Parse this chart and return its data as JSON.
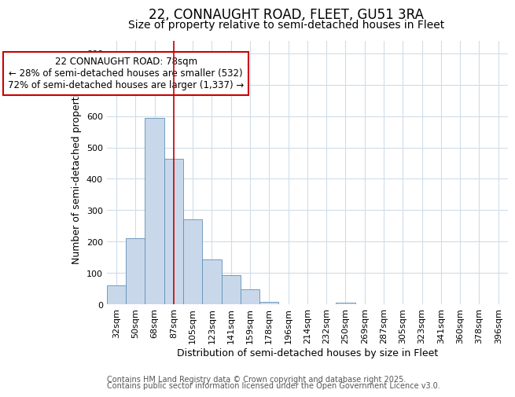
{
  "title1": "22, CONNAUGHT ROAD, FLEET, GU51 3RA",
  "title2": "Size of property relative to semi-detached houses in Fleet",
  "xlabel": "Distribution of semi-detached houses by size in Fleet",
  "ylabel": "Number of semi-detached properties",
  "categories": [
    "32sqm",
    "50sqm",
    "68sqm",
    "87sqm",
    "105sqm",
    "123sqm",
    "141sqm",
    "159sqm",
    "178sqm",
    "196sqm",
    "214sqm",
    "232sqm",
    "250sqm",
    "269sqm",
    "287sqm",
    "305sqm",
    "323sqm",
    "341sqm",
    "360sqm",
    "378sqm",
    "396sqm"
  ],
  "values": [
    60,
    210,
    595,
    465,
    270,
    143,
    92,
    47,
    8,
    0,
    0,
    0,
    5,
    0,
    0,
    0,
    0,
    0,
    0,
    0,
    0
  ],
  "bar_color": "#c8d8ea",
  "bar_edge_color": "#6090b8",
  "red_line_x": 3.0,
  "annotation_text": "22 CONNAUGHT ROAD: 78sqm\n← 28% of semi-detached houses are smaller (532)\n72% of semi-detached houses are larger (1,337) →",
  "annotation_box_color": "#ffffff",
  "annotation_box_edge": "#cc0000",
  "red_line_color": "#cc0000",
  "ylim": [
    0,
    840
  ],
  "yticks": [
    0,
    100,
    200,
    300,
    400,
    500,
    600,
    700,
    800
  ],
  "footer1": "Contains HM Land Registry data © Crown copyright and database right 2025.",
  "footer2": "Contains public sector information licensed under the Open Government Licence v3.0.",
  "background_color": "#ffffff",
  "grid_color": "#d0dce8",
  "title1_fontsize": 12,
  "title2_fontsize": 10,
  "xlabel_fontsize": 9,
  "ylabel_fontsize": 9,
  "tick_fontsize": 8,
  "annotation_fontsize": 8.5,
  "footer_fontsize": 7
}
